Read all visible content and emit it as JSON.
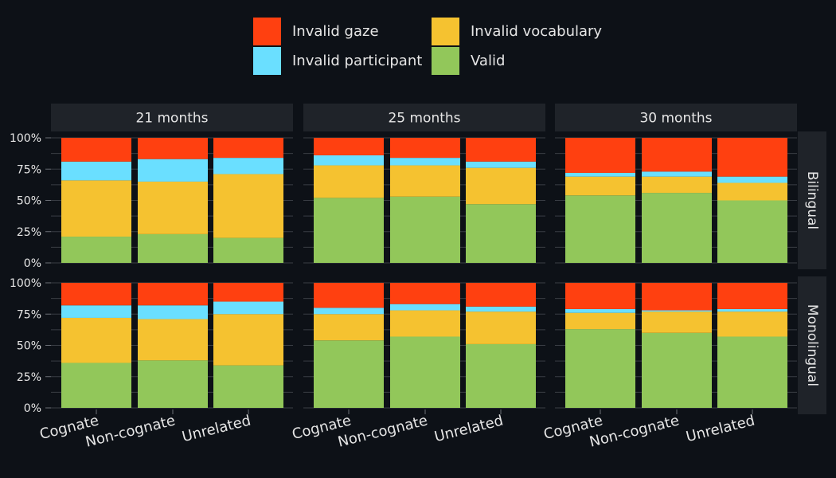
{
  "chart_data": {
    "type": "bar",
    "stacked": true,
    "facet_columns": [
      "21 months",
      "25 months",
      "30 months"
    ],
    "facet_rows": [
      "Bilingual",
      "Monolingual"
    ],
    "categories": [
      "Cognate",
      "Non-cognate",
      "Unrelated"
    ],
    "ylim": [
      0,
      100
    ],
    "yticks": [
      "0%",
      "25%",
      "50%",
      "75%",
      "100%"
    ],
    "legend_placement": "top",
    "series": [
      {
        "name": "Valid",
        "color": "#92c75a"
      },
      {
        "name": "Invalid vocabulary",
        "color": "#f5c230"
      },
      {
        "name": "Invalid participant",
        "color": "#6adfff"
      },
      {
        "name": "Invalid gaze",
        "color": "#ff4010"
      }
    ],
    "legend_order": [
      "Invalid gaze",
      "Invalid vocabulary",
      "Invalid participant",
      "Valid"
    ],
    "panels": [
      {
        "row": "Bilingual",
        "column": "21 months",
        "values": {
          "Valid": [
            21,
            23,
            20
          ],
          "Invalid vocabulary": [
            45,
            42,
            51
          ],
          "Invalid participant": [
            15,
            18,
            13
          ],
          "Invalid gaze": [
            19,
            17,
            16
          ]
        }
      },
      {
        "row": "Bilingual",
        "column": "25 months",
        "values": {
          "Valid": [
            52,
            53,
            47
          ],
          "Invalid vocabulary": [
            26,
            25,
            29
          ],
          "Invalid participant": [
            8,
            6,
            5
          ],
          "Invalid gaze": [
            14,
            16,
            19
          ]
        }
      },
      {
        "row": "Bilingual",
        "column": "30 months",
        "values": {
          "Valid": [
            54,
            56,
            50
          ],
          "Invalid vocabulary": [
            15,
            13,
            14
          ],
          "Invalid participant": [
            3,
            4,
            5
          ],
          "Invalid gaze": [
            28,
            27,
            31
          ]
        }
      },
      {
        "row": "Monolingual",
        "column": "21 months",
        "values": {
          "Valid": [
            36,
            38,
            34
          ],
          "Invalid vocabulary": [
            36,
            33,
            41
          ],
          "Invalid participant": [
            10,
            11,
            10
          ],
          "Invalid gaze": [
            18,
            18,
            15
          ]
        }
      },
      {
        "row": "Monolingual",
        "column": "25 months",
        "values": {
          "Valid": [
            54,
            57,
            51
          ],
          "Invalid vocabulary": [
            21,
            21,
            26
          ],
          "Invalid participant": [
            5,
            5,
            4
          ],
          "Invalid gaze": [
            20,
            17,
            19
          ]
        }
      },
      {
        "row": "Monolingual",
        "column": "30 months",
        "values": {
          "Valid": [
            63,
            60,
            57
          ],
          "Invalid vocabulary": [
            13,
            17,
            20
          ],
          "Invalid participant": [
            3,
            1,
            2
          ],
          "Invalid gaze": [
            21,
            22,
            21
          ]
        }
      }
    ]
  }
}
